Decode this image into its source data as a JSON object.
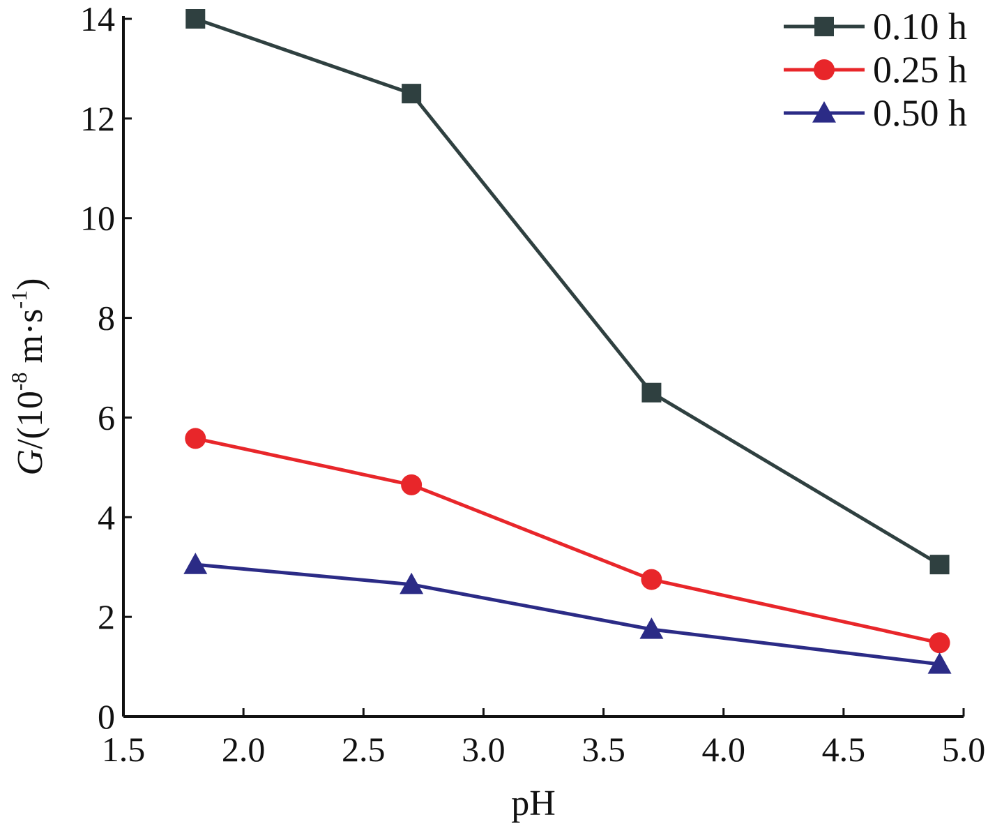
{
  "chart_data": {
    "type": "line",
    "xlabel": "pH",
    "ylabel": {
      "var": "G",
      "prefix": "/(10",
      "exp": "-8",
      "mid": " m·s",
      "exp2": "-1",
      "suffix": ")"
    },
    "xlim": [
      1.5,
      5.0
    ],
    "ylim": [
      0,
      14
    ],
    "xticks": [
      "1.5",
      "2.0",
      "2.5",
      "3.0",
      "3.5",
      "4.0",
      "4.5",
      "5.0"
    ],
    "yticks": [
      "0",
      "2",
      "4",
      "6",
      "8",
      "10",
      "12",
      "14"
    ],
    "grid": false,
    "legend_position": "top-right",
    "series": [
      {
        "name": "0.10 h",
        "marker": "square",
        "color": "#2f4040",
        "x": [
          1.8,
          2.7,
          3.7,
          4.9
        ],
        "y": [
          14.0,
          12.5,
          6.5,
          3.05
        ]
      },
      {
        "name": "0.25 h",
        "marker": "circle",
        "color": "#e8262a",
        "x": [
          1.8,
          2.7,
          3.7,
          4.9
        ],
        "y": [
          5.58,
          4.65,
          2.75,
          1.48
        ]
      },
      {
        "name": "0.50 h",
        "marker": "triangle",
        "color": "#2b2b86",
        "x": [
          1.8,
          2.7,
          3.7,
          4.9
        ],
        "y": [
          3.05,
          2.65,
          1.75,
          1.05
        ]
      }
    ]
  }
}
